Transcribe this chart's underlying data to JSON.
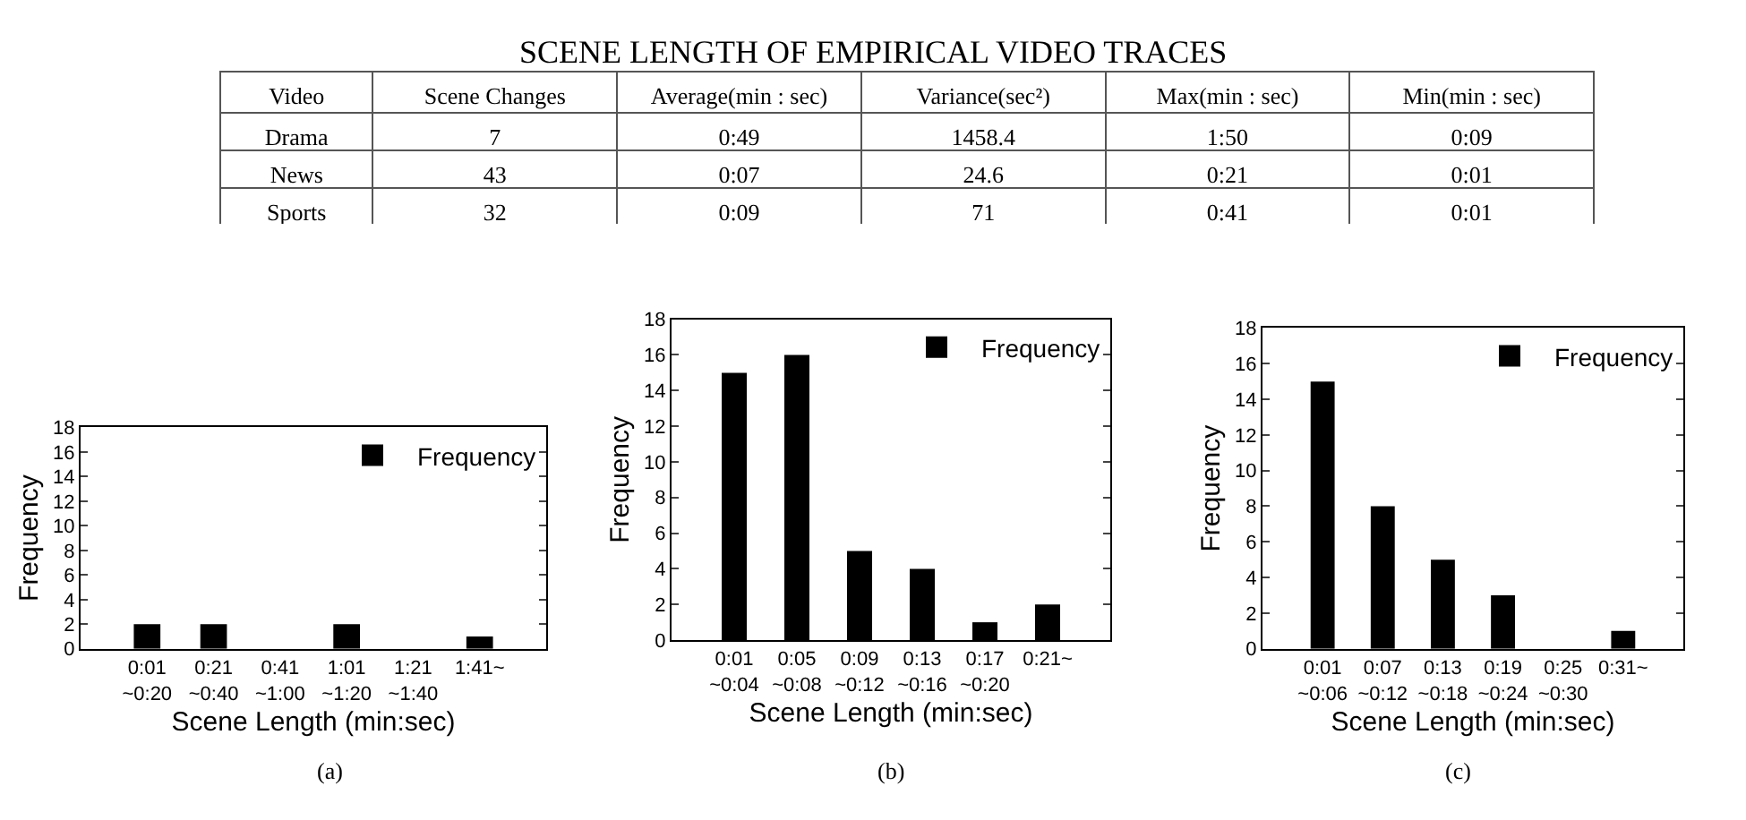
{
  "chart_data": [
    {
      "type": "other",
      "title": "SCENE LENGTH OF EMPIRICAL VIDEO TRACES",
      "categories": [
        "Video",
        "Scene Changes",
        "Average(min : sec)",
        "Variance(sec²)",
        "Max(min : sec)",
        "Min(min : sec)"
      ],
      "y_categories": [
        "Drama",
        "News",
        "Sports"
      ],
      "cell_labels": [
        [
          "7",
          "0:49",
          "1458.4",
          "1:50",
          "0:09"
        ],
        [
          "43",
          "0:07",
          "24.6",
          "0:21",
          "0:01"
        ],
        [
          "32",
          "0:09",
          "71",
          "0:41",
          "0:01"
        ]
      ]
    },
    {
      "type": "bar",
      "xlabel": "Scene Length (min:sec)",
      "ylabel": "Frequency",
      "categories": [
        "0:01\n~0:20",
        "0:21\n~0:40",
        "0:41\n~1:00",
        "1:01\n~1:20",
        "1:21\n~1:40",
        "1:41~"
      ],
      "series": [
        {
          "name": "Frequency",
          "color": "#000000",
          "values": [
            2,
            2,
            0,
            2,
            0,
            1
          ]
        }
      ],
      "ylim": [
        0,
        18
      ],
      "yticks": [
        0,
        2,
        4,
        6,
        8,
        10,
        12,
        14,
        16,
        18
      ],
      "legend": "top right",
      "annotations": [
        "(a)"
      ]
    },
    {
      "type": "bar",
      "xlabel": "Scene Length (min:sec)",
      "ylabel": "Frequency",
      "categories": [
        "0:01\n~0:04",
        "0:05\n~0:08",
        "0:09\n~0:12",
        "0:13\n~0:16",
        "0:17\n~0:20",
        "0:21~"
      ],
      "series": [
        {
          "name": "Frequency",
          "color": "#000000",
          "values": [
            15,
            16,
            5,
            4,
            1,
            2
          ]
        }
      ],
      "ylim": [
        0,
        18
      ],
      "yticks": [
        0,
        2,
        4,
        6,
        8,
        10,
        12,
        14,
        16,
        18
      ],
      "legend": "top right",
      "annotations": [
        "(b)"
      ]
    },
    {
      "type": "bar",
      "xlabel": "Scene Length (min:sec)",
      "ylabel": "Frequency",
      "categories": [
        "0:01\n~0:06",
        "0:07\n~0:12",
        "0:13\n~0:18",
        "0:19\n~0:24",
        "0:25\n~0:30",
        "0:31~"
      ],
      "series": [
        {
          "name": "Frequency",
          "color": "#000000",
          "values": [
            15,
            8,
            5,
            3,
            0,
            1
          ]
        }
      ],
      "ylim": [
        0,
        18
      ],
      "yticks": [
        0,
        2,
        4,
        6,
        8,
        10,
        12,
        14,
        16,
        18
      ],
      "legend": "top right",
      "annotations": [
        "(c)"
      ]
    }
  ]
}
